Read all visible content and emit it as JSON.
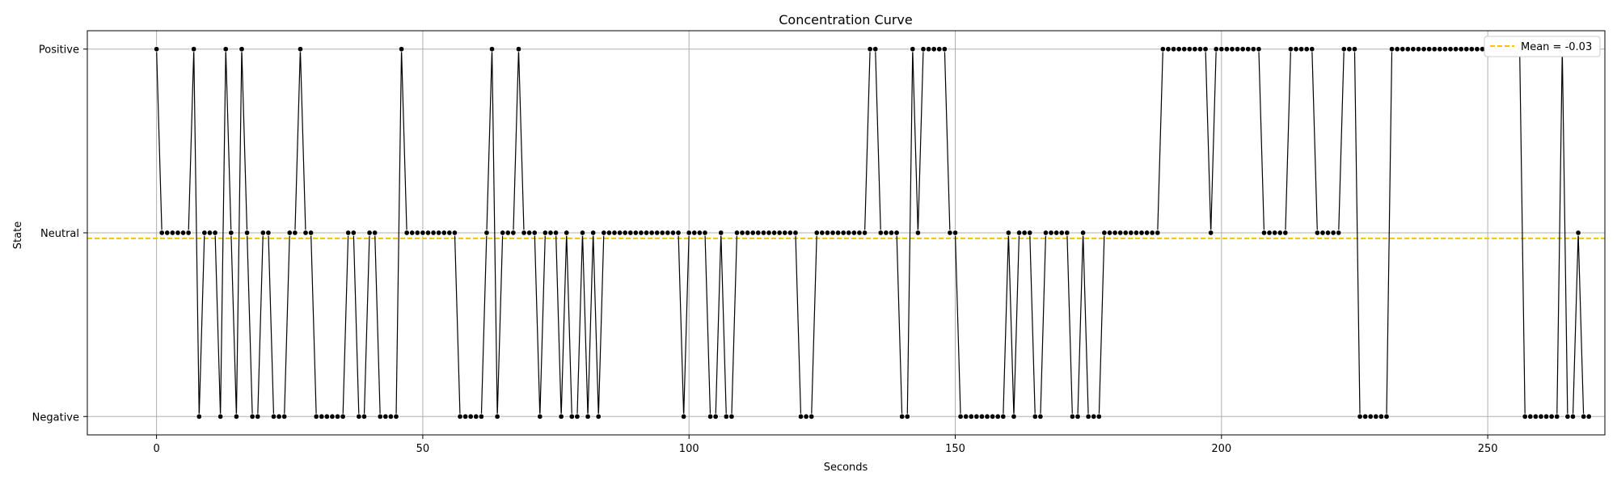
{
  "chart_data": {
    "type": "line",
    "title": "Concentration Curve",
    "xlabel": "Seconds",
    "ylabel": "State",
    "xlim": [
      -13,
      272
    ],
    "ylim": [
      -1.1,
      1.1
    ],
    "x_ticks": [
      0,
      50,
      100,
      150,
      200,
      250
    ],
    "y_ticks": [
      {
        "value": -1,
        "label": "Negative"
      },
      {
        "value": 0,
        "label": "Neutral"
      },
      {
        "value": 1,
        "label": "Positive"
      }
    ],
    "grid": true,
    "legend_placement": "top-right",
    "series": [
      {
        "x_start": 0,
        "x_step": 1,
        "values": [
          1,
          0,
          0,
          0,
          0,
          0,
          0,
          1,
          -1,
          0,
          0,
          0,
          -1,
          1,
          0,
          -1,
          1,
          0,
          -1,
          -1,
          0,
          0,
          -1,
          -1,
          -1,
          0,
          0,
          1,
          0,
          0,
          -1,
          -1,
          -1,
          -1,
          -1,
          -1,
          0,
          0,
          -1,
          -1,
          0,
          0,
          -1,
          -1,
          -1,
          -1,
          1,
          0,
          0,
          0,
          0,
          0,
          0,
          0,
          0,
          0,
          0,
          -1,
          -1,
          -1,
          -1,
          -1,
          0,
          1,
          -1,
          0,
          0,
          0,
          1,
          0,
          0,
          0,
          -1,
          0,
          0,
          0,
          -1,
          0,
          -1,
          -1,
          0,
          -1,
          0,
          -1,
          0,
          0,
          0,
          0,
          0,
          0,
          0,
          0,
          0,
          0,
          0,
          0,
          0,
          0,
          0,
          -1,
          0,
          0,
          0,
          0,
          -1,
          -1,
          0,
          -1,
          -1,
          0,
          0,
          0,
          0,
          0,
          0,
          0,
          0,
          0,
          0,
          0,
          0,
          -1,
          -1,
          -1,
          0,
          0,
          0,
          0,
          0,
          0,
          0,
          0,
          0,
          0,
          1,
          1,
          0,
          0,
          0,
          0,
          -1,
          -1,
          1,
          0,
          1,
          1,
          1,
          1,
          1,
          0,
          0,
          -1,
          -1,
          -1,
          -1,
          -1,
          -1,
          -1,
          -1,
          -1,
          0,
          -1,
          0,
          0,
          0,
          -1,
          -1,
          0,
          0,
          0,
          0,
          0,
          -1,
          -1,
          0,
          -1,
          -1,
          -1,
          0,
          0,
          0,
          0,
          0,
          0,
          0,
          0,
          0,
          0,
          0,
          1,
          1,
          1,
          1,
          1,
          1,
          1,
          1,
          1,
          0,
          1,
          1,
          1,
          1,
          1,
          1,
          1,
          1,
          1,
          0,
          0,
          0,
          0,
          0,
          1,
          1,
          1,
          1,
          1,
          0,
          0,
          0,
          0,
          0,
          1,
          1,
          1,
          -1,
          -1,
          -1,
          -1,
          -1,
          -1,
          1,
          1,
          1,
          1,
          1,
          1,
          1,
          1,
          1,
          1,
          1,
          1,
          1,
          1,
          1,
          1,
          1,
          1,
          1,
          1,
          1,
          1,
          1,
          1,
          1,
          -1,
          -1,
          -1,
          -1,
          -1,
          -1,
          -1,
          1,
          -1,
          -1,
          0,
          -1,
          -1
        ],
        "line_color": "#000000",
        "marker_color": "#000000"
      }
    ],
    "mean": {
      "value": -0.03,
      "label": "Mean = -0.03",
      "color": "#ffc107",
      "style": "dashed"
    }
  }
}
